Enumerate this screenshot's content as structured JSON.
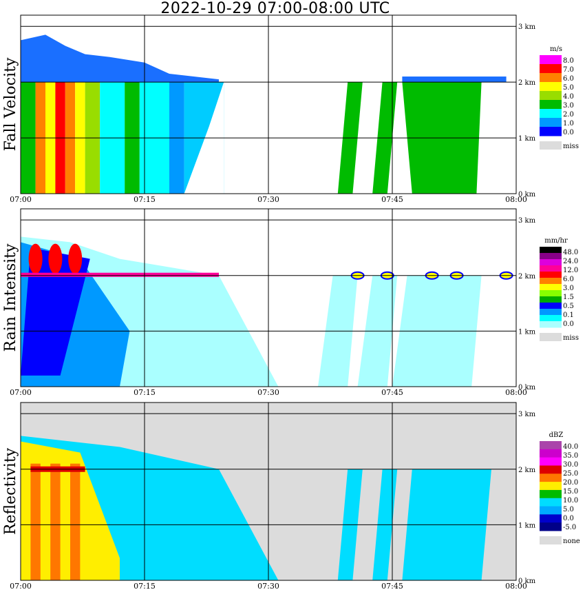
{
  "title": "2022-10-29   07:00-08:00 UTC",
  "time_ticks": [
    "07:00",
    "07:15",
    "07:30",
    "07:45",
    "08:00"
  ],
  "height_ticks": [
    "0 km",
    "1 km",
    "2 km",
    "3 km"
  ],
  "colors": {
    "background_missing": "#dcdcdc",
    "grid": "#000000"
  },
  "chart_data": [
    {
      "type": "heatmap",
      "ylabel": "Fall Velocity",
      "unit": "m/s",
      "x_range": [
        "07:00",
        "08:00"
      ],
      "y_range_km": [
        0,
        3.2
      ],
      "legend": {
        "labels": [
          "8.0",
          "7.0",
          "6.0",
          "5.0",
          "4.0",
          "3.0",
          "2.0",
          "1.0",
          "0.0"
        ],
        "colors": [
          "#ff00ff",
          "#ff0000",
          "#ff8000",
          "#ffff00",
          "#99dd00",
          "#00bb00",
          "#00ffff",
          "#0099ff",
          "#0000ff"
        ],
        "miss_label": "miss",
        "miss_color": "#dcdcdc"
      },
      "features": [
        {
          "from": "07:00",
          "to": "07:10",
          "description": "bright band at 2 km"
        },
        {
          "from": "07:38",
          "to": "07:50",
          "description": "green streaks"
        },
        {
          "from": "07:47",
          "to": "07:57",
          "description": "green block"
        }
      ]
    },
    {
      "type": "heatmap",
      "ylabel": "Rain Intensity",
      "unit": "mm/hr",
      "x_range": [
        "07:00",
        "08:00"
      ],
      "y_range_km": [
        0,
        3.2
      ],
      "legend": {
        "labels": [
          "48.0",
          "24.0",
          "12.0",
          "6.0",
          "3.0",
          "1.5",
          "0.5",
          "0.1",
          "0.0"
        ],
        "colors": [
          "#000000",
          "#880088",
          "#dd00dd",
          "#ff0099",
          "#ff0000",
          "#ff8000",
          "#ffff00",
          "#88ff00",
          "#00aa00",
          "#0000ff",
          "#0099ff",
          "#00ffff",
          "#aaffff"
        ],
        "miss_label": "miss",
        "miss_color": "#dcdcdc"
      },
      "features": [
        {
          "from": "07:00",
          "to": "07:12",
          "description": "heavy rain bands"
        },
        {
          "from": "07:40",
          "to": "08:00",
          "description": "light rain at 2 km"
        }
      ]
    },
    {
      "type": "heatmap",
      "ylabel": "Reflectivity",
      "unit": "dBZ",
      "x_range": [
        "07:00",
        "08:00"
      ],
      "y_range_km": [
        0,
        3.2
      ],
      "legend": {
        "labels": [
          "40.0",
          "35.0",
          "30.0",
          "25.0",
          "20.0",
          "15.0",
          "10.0",
          "5.0",
          "0.0",
          "-5.0"
        ],
        "colors": [
          "#aa44aa",
          "#cc00cc",
          "#ff00ff",
          "#dd0000",
          "#ff7700",
          "#ffee00",
          "#00bb00",
          "#00ddff",
          "#00aaff",
          "#0000cc",
          "#000088"
        ],
        "miss_label": "none",
        "miss_color": "#dcdcdc"
      },
      "features": [
        {
          "from": "07:00",
          "to": "07:10",
          "description": "strong echoes"
        },
        {
          "from": "07:38",
          "to": "07:57",
          "description": "echo streaks"
        }
      ]
    }
  ]
}
